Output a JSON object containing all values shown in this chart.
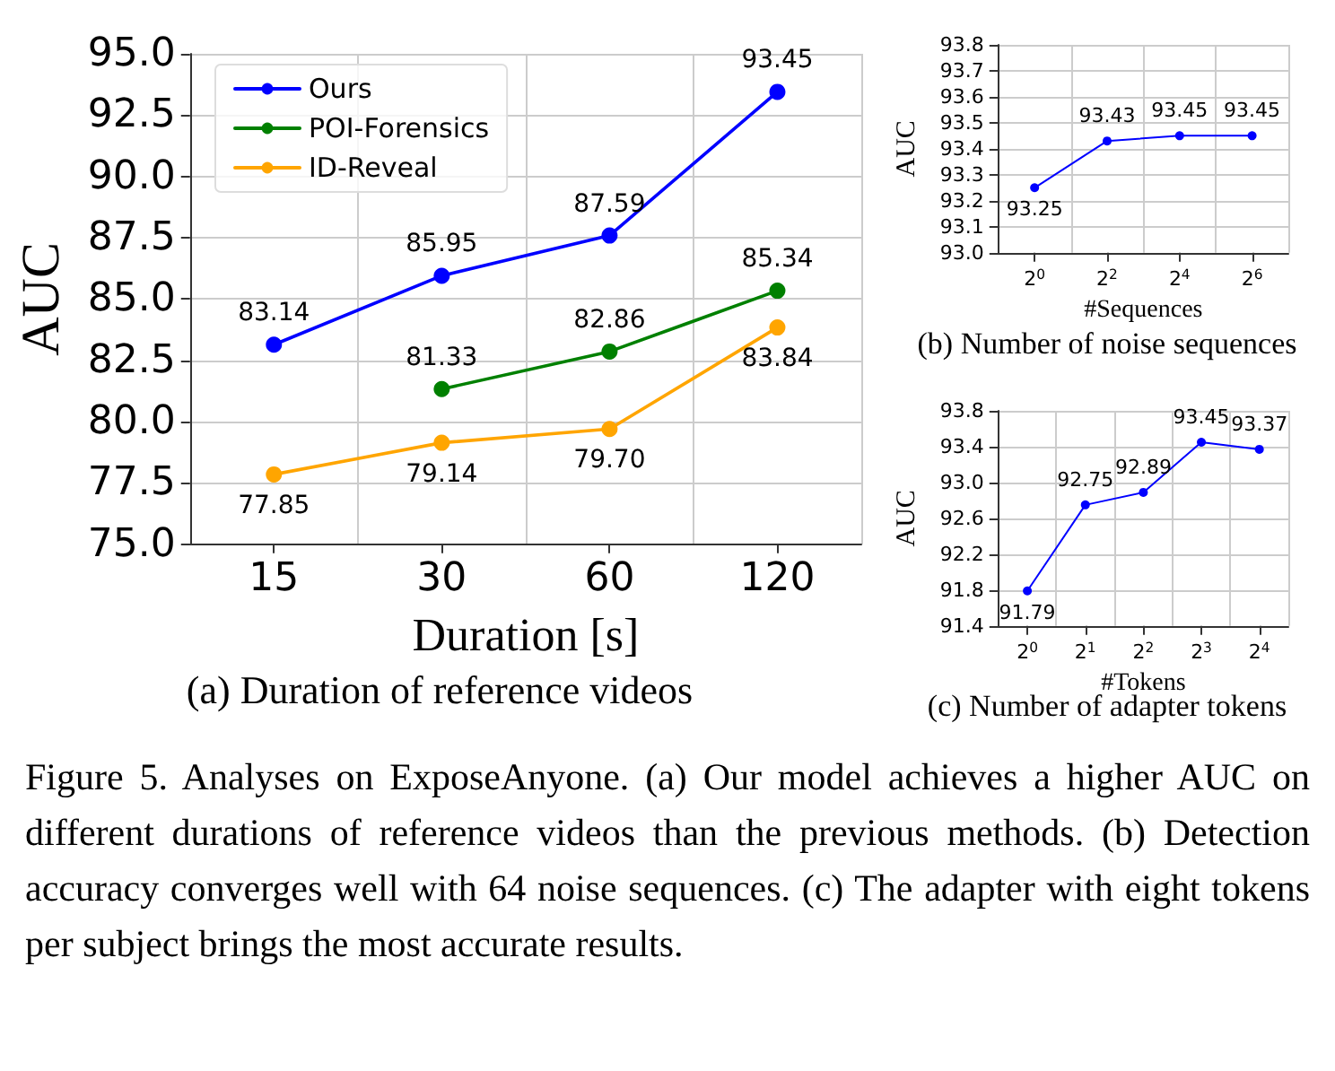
{
  "chart_data": [
    {
      "type": "line",
      "xlabel": "Duration [s]",
      "ylabel": "AUC",
      "categories": [
        "15",
        "30",
        "60",
        "120"
      ],
      "ylim": [
        75,
        95
      ],
      "yticks": [
        {
          "value": 75,
          "label": "75.0"
        },
        {
          "value": 77.5,
          "label": "77.5"
        },
        {
          "value": 80,
          "label": "80.0"
        },
        {
          "value": 82.5,
          "label": "82.5"
        },
        {
          "value": 85,
          "label": "85.0"
        },
        {
          "value": 87.5,
          "label": "87.5"
        },
        {
          "value": 90,
          "label": "90.0"
        },
        {
          "value": 92.5,
          "label": "92.5"
        },
        {
          "value": 95,
          "label": "95.0"
        }
      ],
      "grid": true,
      "legend": "top left",
      "marker": "circle",
      "line_style": "solid",
      "series": [
        {
          "name": "Ours",
          "color": "#0000ff",
          "values": [
            83.14,
            85.95,
            87.59,
            93.45
          ],
          "value_labels": [
            "83.14",
            "85.95",
            "87.59",
            "93.45"
          ]
        },
        {
          "name": "POI-Forensics",
          "color": "#008000",
          "values": [
            null,
            81.33,
            82.86,
            85.34
          ],
          "value_labels": [
            null,
            "81.33",
            "82.86",
            "85.34"
          ]
        },
        {
          "name": "ID-Reveal",
          "color": "#ffa500",
          "values": [
            77.85,
            79.14,
            79.7,
            83.84
          ],
          "value_labels": [
            "77.85",
            "79.14",
            "79.70",
            "83.84"
          ]
        }
      ],
      "annotations": [
        "(a) Duration of reference videos",
        "Figure 5. Analyses on ExposeAnyone. (a) Our model achieves a higher AUC on different durations of reference videos than the previous methods. (b) Detection accuracy converges well with 64 noise sequences. (c) The adapter with eight tokens per subject brings the most accurate results."
      ]
    },
    {
      "type": "line",
      "xlabel": "#Sequences",
      "ylabel": "AUC",
      "categories": [
        "2$^{0}$",
        "2$^{2}$",
        "2$^{4}$",
        "2$^{6}$"
      ],
      "ylim": [
        93.0,
        93.8
      ],
      "yticks": [
        {
          "value": 93.0,
          "label": "93.0"
        },
        {
          "value": 93.1,
          "label": "93.1"
        },
        {
          "value": 93.2,
          "label": "93.2"
        },
        {
          "value": 93.3,
          "label": "93.3"
        },
        {
          "value": 93.4,
          "label": "93.4"
        },
        {
          "value": 93.5,
          "label": "93.5"
        },
        {
          "value": 93.6,
          "label": "93.6"
        },
        {
          "value": 93.7,
          "label": "93.7"
        },
        {
          "value": 93.8,
          "label": "93.8"
        }
      ],
      "grid": true,
      "marker": "circle",
      "line_style": "solid",
      "series": [
        {
          "color": "#0000ff",
          "values": [
            93.25,
            93.43,
            93.45,
            93.45
          ]
        }
      ],
      "data_labels": true,
      "annotations": [
        "(b) Number of noise sequences"
      ]
    },
    {
      "type": "line",
      "xlabel": "#Tokens",
      "ylabel": "AUC",
      "categories": [
        "2$^{0}$",
        "2$^{1}$",
        "2$^{2}$",
        "2$^{3}$",
        "2$^{4}$"
      ],
      "ylim": [
        91.4,
        93.8
      ],
      "yticks": [
        {
          "value": 91.4,
          "label": "91.4"
        },
        {
          "value": 91.8,
          "label": "91.8"
        },
        {
          "value": 92.2,
          "label": "92.2"
        },
        {
          "value": 92.6,
          "label": "92.6"
        },
        {
          "value": 93.0,
          "label": "93.0"
        },
        {
          "value": 93.4,
          "label": "93.4"
        },
        {
          "value": 93.8,
          "label": "93.8"
        }
      ],
      "grid": true,
      "marker": "circle",
      "line_style": "solid",
      "series": [
        {
          "color": "#0000ff",
          "values": [
            91.79,
            92.75,
            92.89,
            93.45,
            93.37
          ]
        }
      ],
      "data_labels": true,
      "annotations": [
        "(c) Number of adapter tokens"
      ]
    }
  ]
}
